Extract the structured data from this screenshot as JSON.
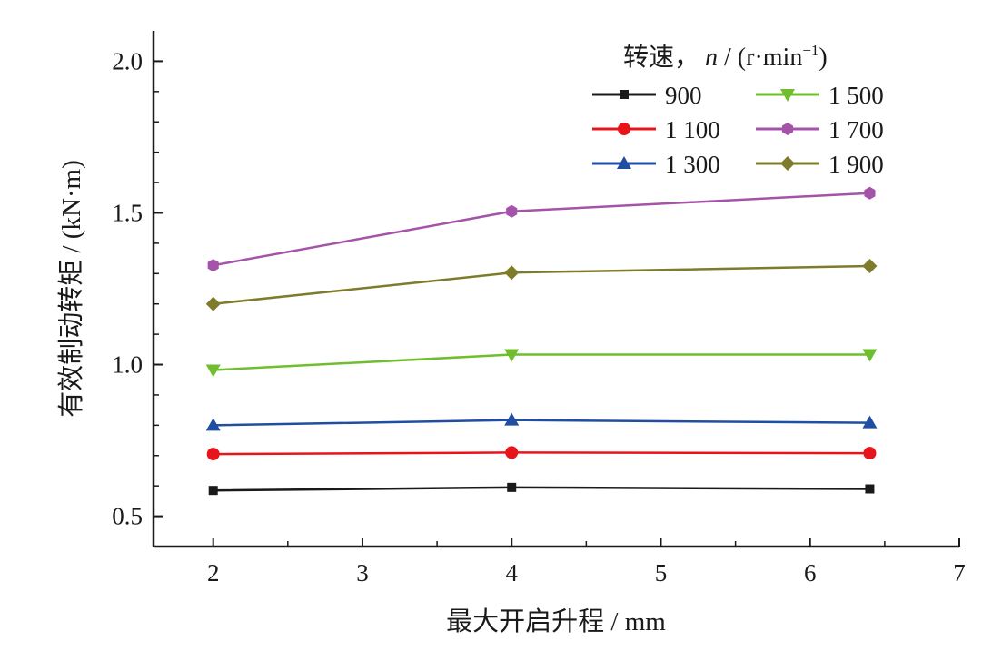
{
  "chart_data": {
    "type": "line",
    "xlabel": "最大开启升程 / mm",
    "ylabel": "有效制动转矩 / (kN·m)",
    "xlim": [
      1.6,
      7.0
    ],
    "ylim": [
      0.4,
      2.1
    ],
    "x_ticks": [
      "2",
      "3",
      "4",
      "5",
      "6",
      "7"
    ],
    "y_ticks": [
      "0.5",
      "1.0",
      "1.5",
      "2.0"
    ],
    "legend": {
      "title": "转速，",
      "title_var": "n",
      "title_unit": " / (r·min",
      "title_exp": "−1",
      "title_close": ")",
      "placement": "top-right"
    },
    "x": [
      2,
      4,
      6.4
    ],
    "series": [
      {
        "name": "900",
        "values": [
          0.585,
          0.595,
          0.59
        ],
        "color": "#1a1a1a",
        "marker": "square"
      },
      {
        "name": "1 100",
        "values": [
          0.705,
          0.71,
          0.708
        ],
        "color": "#e8141b",
        "marker": "circle"
      },
      {
        "name": "1 300",
        "values": [
          0.8,
          0.817,
          0.808
        ],
        "color": "#1f4ea3",
        "marker": "triangle-up"
      },
      {
        "name": "1 500",
        "values": [
          0.982,
          1.033,
          1.033
        ],
        "color": "#6fbe2e",
        "marker": "triangle-down"
      },
      {
        "name": "1 700",
        "values": [
          1.327,
          1.505,
          1.565
        ],
        "color": "#a553a9",
        "marker": "hexagon"
      },
      {
        "name": "1 900",
        "values": [
          1.2,
          1.303,
          1.325
        ],
        "color": "#7e7c2b",
        "marker": "diamond"
      }
    ]
  }
}
